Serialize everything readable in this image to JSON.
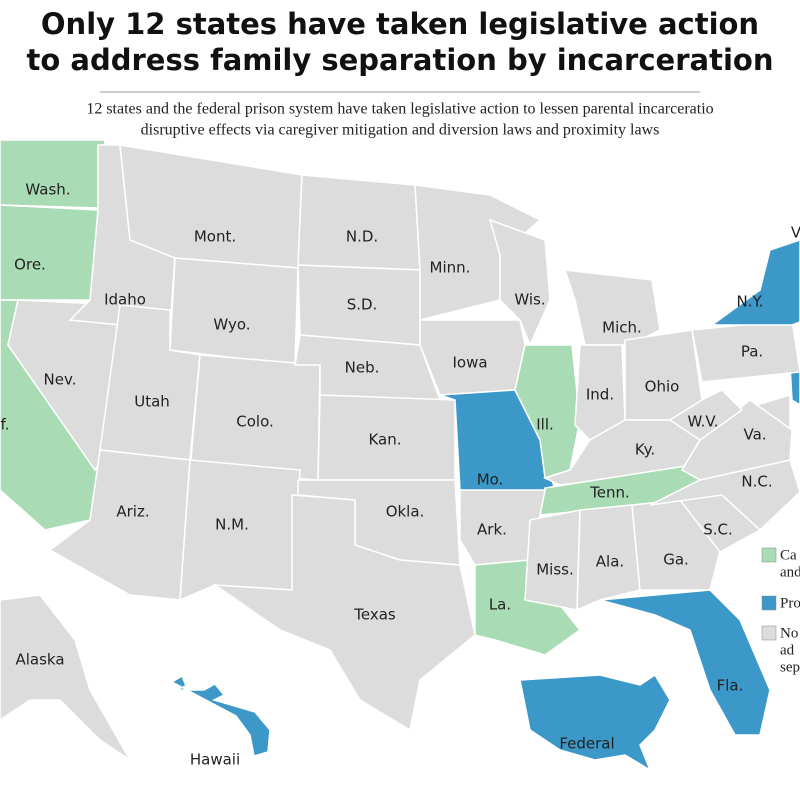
{
  "header": {
    "title": [
      "Only 12 states have taken legislative action",
      "to address family separation by incarceration"
    ],
    "subtitle": [
      "12 states and the federal prison system have taken legislative action to lessen parental incarceratio",
      "disruptive effects via caregiver mitigation and diversion laws and proximity laws"
    ]
  },
  "legend": {
    "items": [
      {
        "color": "#a9dcb4",
        "lines": [
          "Ca",
          "and"
        ]
      },
      {
        "color": "#3b98c8",
        "lines": [
          "Pro"
        ]
      },
      {
        "color": "#dcdcdc",
        "lines": [
          "No",
          "ad",
          "sep"
        ]
      }
    ]
  },
  "states": [
    {
      "label": "Wash.",
      "category": 0
    },
    {
      "label": "Ore.",
      "category": 0
    },
    {
      "label": "f.",
      "category": 0
    },
    {
      "label": "Nev.",
      "category": 2
    },
    {
      "label": "Idaho",
      "category": 2
    },
    {
      "label": "Mont.",
      "category": 2
    },
    {
      "label": "Wyo.",
      "category": 2
    },
    {
      "label": "Utah",
      "category": 2
    },
    {
      "label": "Colo.",
      "category": 2
    },
    {
      "label": "Ariz.",
      "category": 2
    },
    {
      "label": "N.M.",
      "category": 2
    },
    {
      "label": "N.D.",
      "category": 2
    },
    {
      "label": "S.D.",
      "category": 2
    },
    {
      "label": "Neb.",
      "category": 2
    },
    {
      "label": "Kan.",
      "category": 2
    },
    {
      "label": "Okla.",
      "category": 2
    },
    {
      "label": "Texas",
      "category": 2
    },
    {
      "label": "Minn.",
      "category": 2
    },
    {
      "label": "Iowa",
      "category": 2
    },
    {
      "label": "Mo.",
      "category": 1
    },
    {
      "label": "Wis.",
      "category": 2
    },
    {
      "label": "Ill.",
      "category": 0
    },
    {
      "label": "Mich.",
      "category": 2
    },
    {
      "label": "Ind.",
      "category": 2
    },
    {
      "label": "Ohio",
      "category": 2
    },
    {
      "label": "Ky.",
      "category": 2
    },
    {
      "label": "Tenn.",
      "category": 0
    },
    {
      "label": "Ark.",
      "category": 2
    },
    {
      "label": "La.",
      "category": 0
    },
    {
      "label": "Miss.",
      "category": 2
    },
    {
      "label": "Ala.",
      "category": 2
    },
    {
      "label": "Ga.",
      "category": 2
    },
    {
      "label": "Fla.",
      "category": 1
    },
    {
      "label": "S.C.",
      "category": 2
    },
    {
      "label": "N.C.",
      "category": 2
    },
    {
      "label": "Va.",
      "category": 2
    },
    {
      "label": "W.V.",
      "category": 2
    },
    {
      "label": "Pa.",
      "category": 2
    },
    {
      "label": "N.Y.",
      "category": 1
    },
    {
      "label": "Alaska",
      "category": 2
    },
    {
      "label": "Hawaii",
      "category": 1
    },
    {
      "label": "Federal",
      "category": 1
    },
    {
      "label": "V",
      "category": 2
    }
  ]
}
